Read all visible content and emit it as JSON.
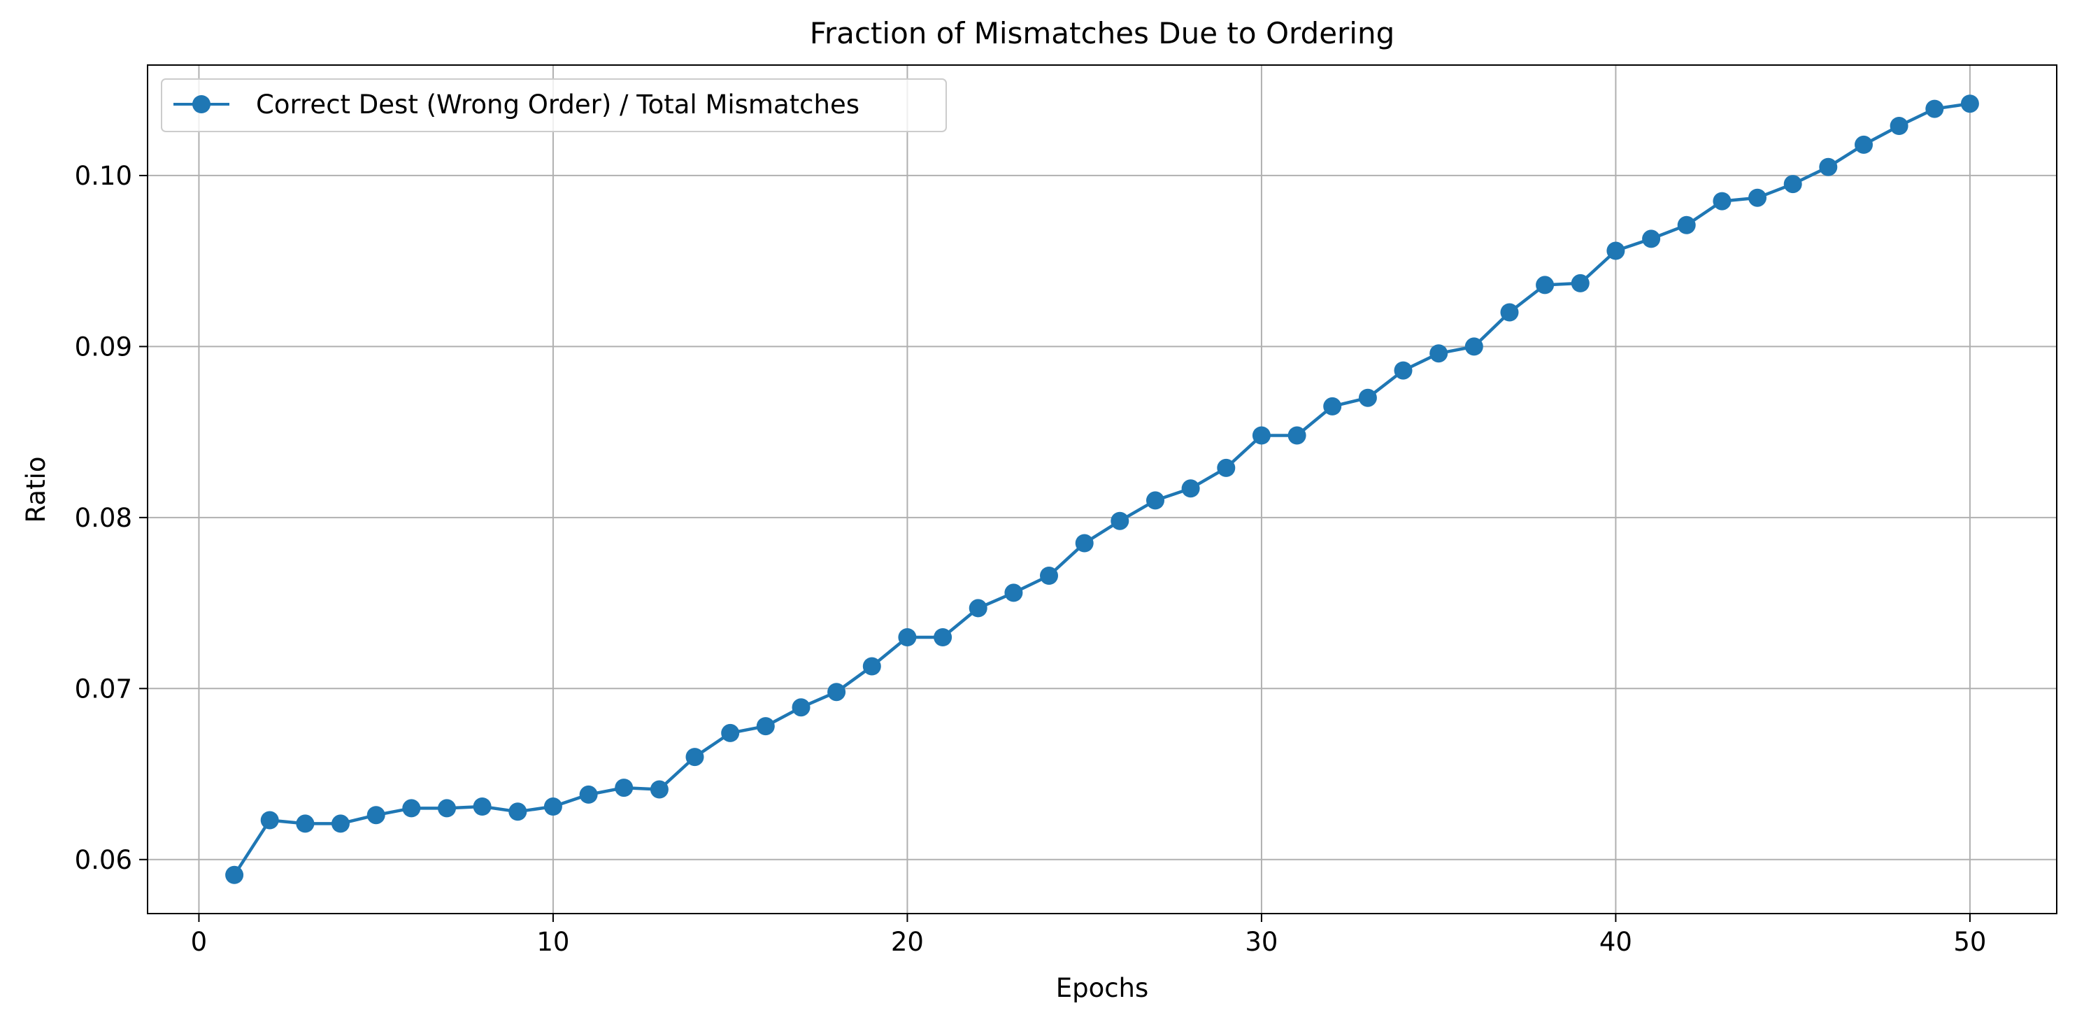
{
  "chart_data": {
    "type": "line",
    "title": "Fraction of Mismatches Due to Ordering",
    "xlabel": "Epochs",
    "ylabel": "Ratio",
    "xlim": [
      -1.45,
      52.45
    ],
    "ylim": [
      0.05684,
      0.10646
    ],
    "xticks": [
      0,
      10,
      20,
      30,
      40,
      50
    ],
    "xtick_labels": [
      "0",
      "10",
      "20",
      "30",
      "40",
      "50"
    ],
    "yticks": [
      0.06,
      0.07,
      0.08,
      0.09,
      0.1
    ],
    "ytick_labels": [
      "0.06",
      "0.07",
      "0.08",
      "0.09",
      "0.10"
    ],
    "grid": true,
    "legend_position": "upper-left",
    "series": [
      {
        "name": "Correct Dest (Wrong Order) / Total Mismatches",
        "color": "#1f77b4",
        "marker": "circle",
        "x": [
          1,
          2,
          3,
          4,
          5,
          6,
          7,
          8,
          9,
          10,
          11,
          12,
          13,
          14,
          15,
          16,
          17,
          18,
          19,
          20,
          21,
          22,
          23,
          24,
          25,
          26,
          27,
          28,
          29,
          30,
          31,
          32,
          33,
          34,
          35,
          36,
          37,
          38,
          39,
          40,
          41,
          42,
          43,
          44,
          45,
          46,
          47,
          48,
          49,
          50
        ],
        "values": [
          0.0591,
          0.0623,
          0.0621,
          0.0621,
          0.0626,
          0.063,
          0.063,
          0.0631,
          0.0628,
          0.0631,
          0.0638,
          0.0642,
          0.0641,
          0.066,
          0.0674,
          0.0678,
          0.0689,
          0.0698,
          0.0713,
          0.073,
          0.073,
          0.0747,
          0.0756,
          0.0766,
          0.0785,
          0.0798,
          0.081,
          0.0817,
          0.0829,
          0.0848,
          0.0848,
          0.0865,
          0.087,
          0.0886,
          0.0896,
          0.09,
          0.092,
          0.0936,
          0.0937,
          0.0956,
          0.0963,
          0.0971,
          0.0985,
          0.0987,
          0.0995,
          0.1005,
          0.1018,
          0.1029,
          0.1039,
          0.1042
        ]
      }
    ]
  }
}
